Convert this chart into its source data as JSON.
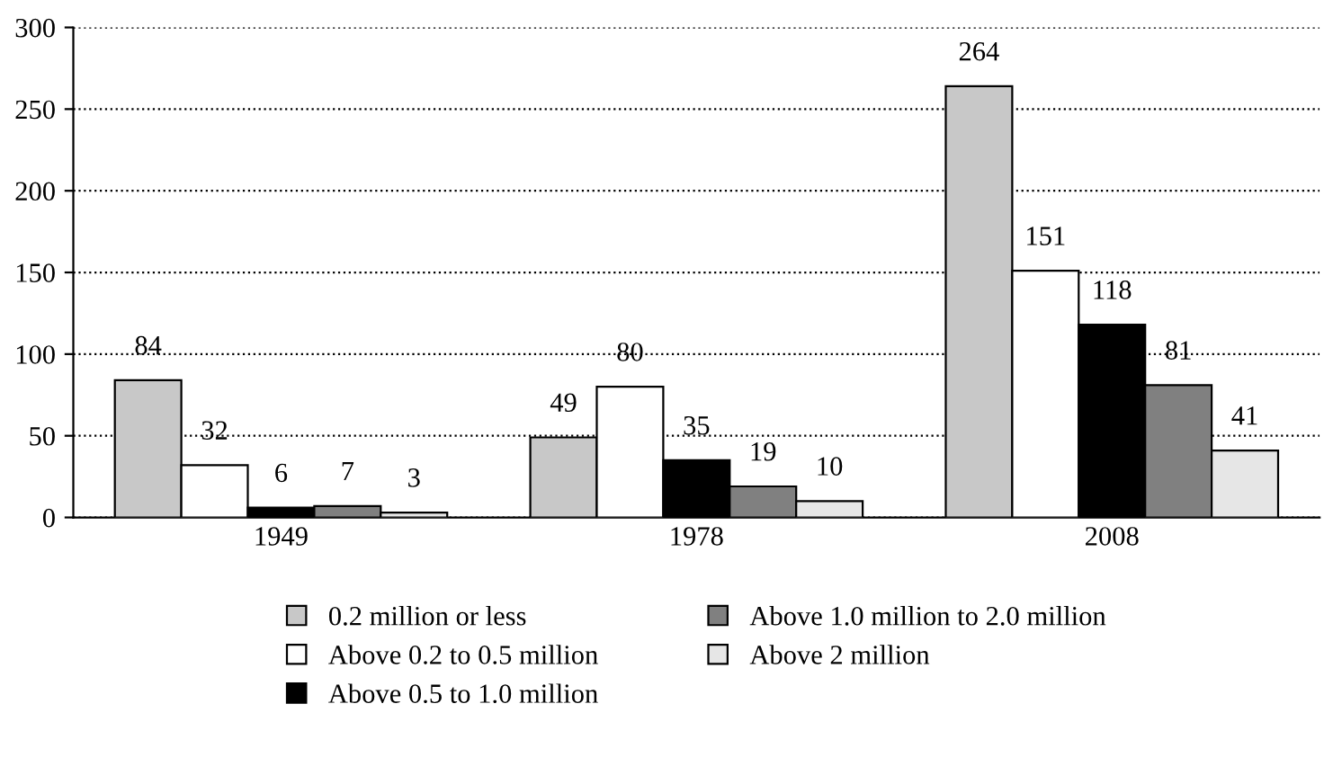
{
  "chart_data": {
    "type": "bar",
    "categories": [
      "1949",
      "1978",
      "2008"
    ],
    "series": [
      {
        "name": "0.2 million or less",
        "color": "#c8c8c8",
        "values": [
          84,
          49,
          264
        ]
      },
      {
        "name": "Above 0.2 to 0.5 million",
        "color": "#ffffff",
        "values": [
          32,
          80,
          151
        ]
      },
      {
        "name": "Above 0.5 to 1.0 million",
        "color": "#000000",
        "values": [
          6,
          35,
          118
        ]
      },
      {
        "name": "Above 1.0 million to 2.0 million",
        "color": "#808080",
        "values": [
          7,
          19,
          81
        ]
      },
      {
        "name": "Above 2 million",
        "color": "#e6e6e6",
        "values": [
          3,
          10,
          41
        ]
      }
    ],
    "ylim": [
      0,
      300
    ],
    "yticks": [
      0,
      50,
      100,
      150,
      200,
      250,
      300
    ],
    "grid": "y",
    "legend": "bottom",
    "data_labels": true
  }
}
